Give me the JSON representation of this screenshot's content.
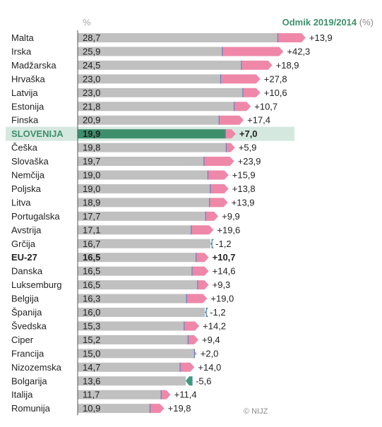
{
  "header": {
    "percent_label": "%",
    "change_label": "Odmik 2019/2014",
    "change_unit": "(%)"
  },
  "copyright": "© NIJZ",
  "colors": {
    "bar": "#c0c0c0",
    "change_positive": "#ef88a8",
    "change_negative": "#3d9b7c",
    "highlight_bar": "#3d8f6b",
    "highlight_band": "#d5e8df",
    "marker": "#5b86c4"
  },
  "chart_data": {
    "type": "bar",
    "orientation": "horizontal",
    "title": "",
    "xlabel": "%",
    "highlight": "SLOVENIJA",
    "bold": [
      "SLOVENIJA",
      "EU-27"
    ],
    "categories": [
      "Malta",
      "Irska",
      "Madžarska",
      "Hrvaška",
      "Latvija",
      "Estonija",
      "Finska",
      "SLOVENIJA",
      "Češka",
      "Slovaška",
      "Nemčija",
      "Poljska",
      "Litva",
      "Portugalska",
      "Avstrija",
      "Grčija",
      "EU-27",
      "Danska",
      "Luksemburg",
      "Belgija",
      "Španija",
      "Švedska",
      "Ciper",
      "Francija",
      "Nizozemska",
      "Bolgarija",
      "Italija",
      "Romunija"
    ],
    "series": [
      {
        "name": "%",
        "values": [
          28.7,
          25.9,
          24.5,
          23.0,
          23.0,
          21.8,
          20.9,
          19.9,
          19.8,
          19.7,
          19.0,
          19.0,
          18.9,
          17.7,
          17.1,
          16.7,
          16.5,
          16.5,
          16.5,
          16.3,
          16.0,
          15.3,
          15.2,
          15.0,
          14.7,
          13.6,
          11.7,
          10.9
        ]
      },
      {
        "name": "Odmik 2019/2014 (%)",
        "values": [
          13.9,
          42.3,
          18.9,
          27.8,
          10.6,
          10.7,
          17.4,
          7.0,
          5.9,
          23.9,
          15.9,
          13.8,
          13.9,
          9.9,
          19.6,
          -1.2,
          10.7,
          14.6,
          9.3,
          19.0,
          -1.2,
          14.2,
          9.4,
          2.0,
          14.0,
          -5.6,
          11.4,
          19.8
        ]
      }
    ],
    "value_labels": [
      "28,7",
      "25,9",
      "24,5",
      "23,0",
      "23,0",
      "21,8",
      "20,9",
      "19,9",
      "19,8",
      "19,7",
      "19,0",
      "19,0",
      "18,9",
      "17,7",
      "17,1",
      "16,7",
      "16,5",
      "16,5",
      "16,5",
      "16,3",
      "16,0",
      "15,3",
      "15,2",
      "15,0",
      "14,7",
      "13,6",
      "11,7",
      "10,9"
    ],
    "change_labels": [
      "+13,9",
      "+42,3",
      "+18,9",
      "+27,8",
      "+10,6",
      "+10,7",
      "+17,4",
      "+7,0",
      "+5,9",
      "+23,9",
      "+15,9",
      "+13,8",
      "+13,9",
      "+9,9",
      "+19,6",
      "-1,2",
      "+10,7",
      "+14,6",
      "+9,3",
      "+19,0",
      "-1,2",
      "+14,2",
      "+9,4",
      "+2,0",
      "+14,0",
      "-5,6",
      "+11,4",
      "+19,8"
    ]
  }
}
